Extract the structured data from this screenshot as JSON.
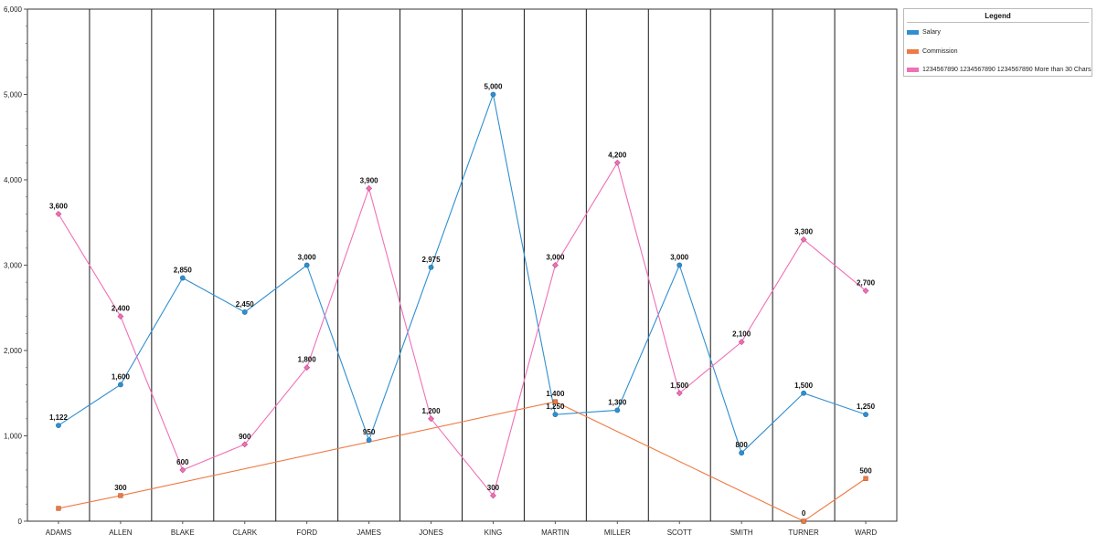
{
  "chart_data": {
    "type": "line",
    "categories": [
      "ADAMS",
      "ALLEN",
      "BLAKE",
      "CLARK",
      "FORD",
      "JAMES",
      "JONES",
      "KING",
      "MARTIN",
      "MILLER",
      "SCOTT",
      "SMITH",
      "TURNER",
      "WARD"
    ],
    "ylim": [
      0,
      6000
    ],
    "yticks": [
      0,
      1000,
      2000,
      3000,
      4000,
      5000,
      6000
    ],
    "ytick_labels": [
      "0",
      "1,000",
      "2,000",
      "3,000",
      "4,000",
      "5,000",
      "6,000"
    ],
    "grid": "vertical category separators",
    "legend_title": "Legend",
    "legend_position": "top-right",
    "series": [
      {
        "name": "Salary",
        "color": "#2f8fd0",
        "marker": "circle",
        "values": [
          1122,
          1600,
          2850,
          2450,
          3000,
          950,
          2975,
          5000,
          1250,
          1300,
          3000,
          800,
          1500,
          1250
        ],
        "labels": [
          "1,122",
          "1,600",
          "2,850",
          "2,450",
          "3,000",
          "950",
          "2,975",
          "5,000",
          "1,250",
          "1,300",
          "3,000",
          "800",
          "1,500",
          "1,250"
        ]
      },
      {
        "name": "Commission",
        "color": "#ee7a43",
        "marker": "square",
        "values": [
          150,
          300,
          null,
          null,
          null,
          null,
          null,
          null,
          1400,
          null,
          null,
          null,
          0,
          500
        ],
        "labels": [
          "",
          "300",
          "",
          "",
          "",
          "",
          "",
          "",
          "1,400",
          "",
          "",
          "",
          "0",
          "500"
        ]
      },
      {
        "name": "1234567890 1234567890 1234567890 More than 30 Chars",
        "color": "#f070b6",
        "marker": "diamond",
        "values": [
          3600,
          2400,
          600,
          900,
          1800,
          3900,
          1200,
          300,
          3000,
          4200,
          1500,
          2100,
          3300,
          2700
        ],
        "labels": [
          "3,600",
          "2,400",
          "600",
          "900",
          "1,800",
          "3,900",
          "1,200",
          "300",
          "3,000",
          "4,200",
          "1,500",
          "2,100",
          "3,300",
          "2,700"
        ]
      }
    ]
  }
}
